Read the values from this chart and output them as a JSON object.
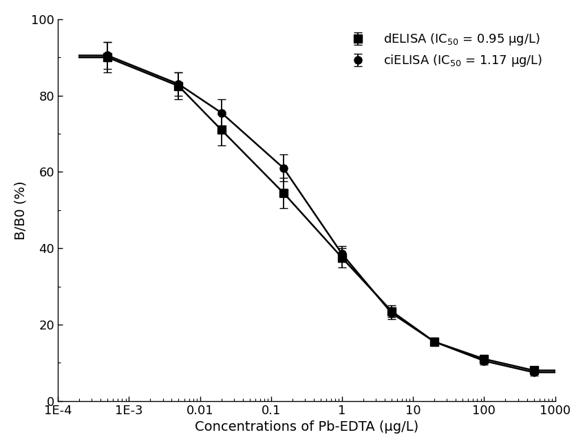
{
  "title": "",
  "xlabel": "Concentrations of Pb-EDTA (μg/L)",
  "ylabel": "B/B0 (%)",
  "xlim": [
    0.0001,
    1000
  ],
  "ylim": [
    0,
    100
  ],
  "yticks": [
    0,
    20,
    40,
    60,
    80,
    100
  ],
  "background_color": "#ffffff",
  "dELISA": {
    "label": "dELISA (IC$_{50}$ = 0.95 μg/L)",
    "marker": "s",
    "color": "#000000",
    "x": [
      0.0005,
      0.005,
      0.02,
      0.15,
      1.0,
      5.0,
      20.0,
      100.0,
      500.0
    ],
    "y": [
      90.0,
      82.5,
      71.0,
      54.5,
      37.5,
      23.5,
      15.5,
      11.0,
      8.0
    ],
    "yerr": [
      4.0,
      3.5,
      4.0,
      4.0,
      2.5,
      1.5,
      1.0,
      1.0,
      0.8
    ],
    "IC50": 0.95
  },
  "ciELISA": {
    "label": "ciELISA (IC$_{50}$ = 1.17 μg/L)",
    "marker": "o",
    "color": "#000000",
    "x": [
      0.0005,
      0.005,
      0.02,
      0.15,
      1.0,
      5.0,
      20.0,
      100.0,
      500.0
    ],
    "y": [
      90.5,
      83.0,
      75.5,
      61.0,
      38.5,
      23.0,
      15.5,
      10.5,
      7.5
    ],
    "yerr": [
      3.5,
      3.0,
      3.5,
      3.5,
      2.0,
      1.5,
      1.0,
      1.0,
      0.8
    ],
    "IC50": 1.17
  },
  "xtick_positions": [
    0.0001,
    0.001,
    0.01,
    0.1,
    1.0,
    10.0,
    100.0,
    1000.0
  ],
  "xtick_labels": [
    "1E-4",
    "1E-3",
    "0.01",
    "0.1",
    "1",
    "10",
    "100",
    "1000"
  ],
  "legend_fontsize": 13,
  "axis_fontsize": 14,
  "tick_fontsize": 13,
  "markersize": 8,
  "linewidth": 1.8,
  "capsize": 4,
  "elinewidth": 1.3
}
